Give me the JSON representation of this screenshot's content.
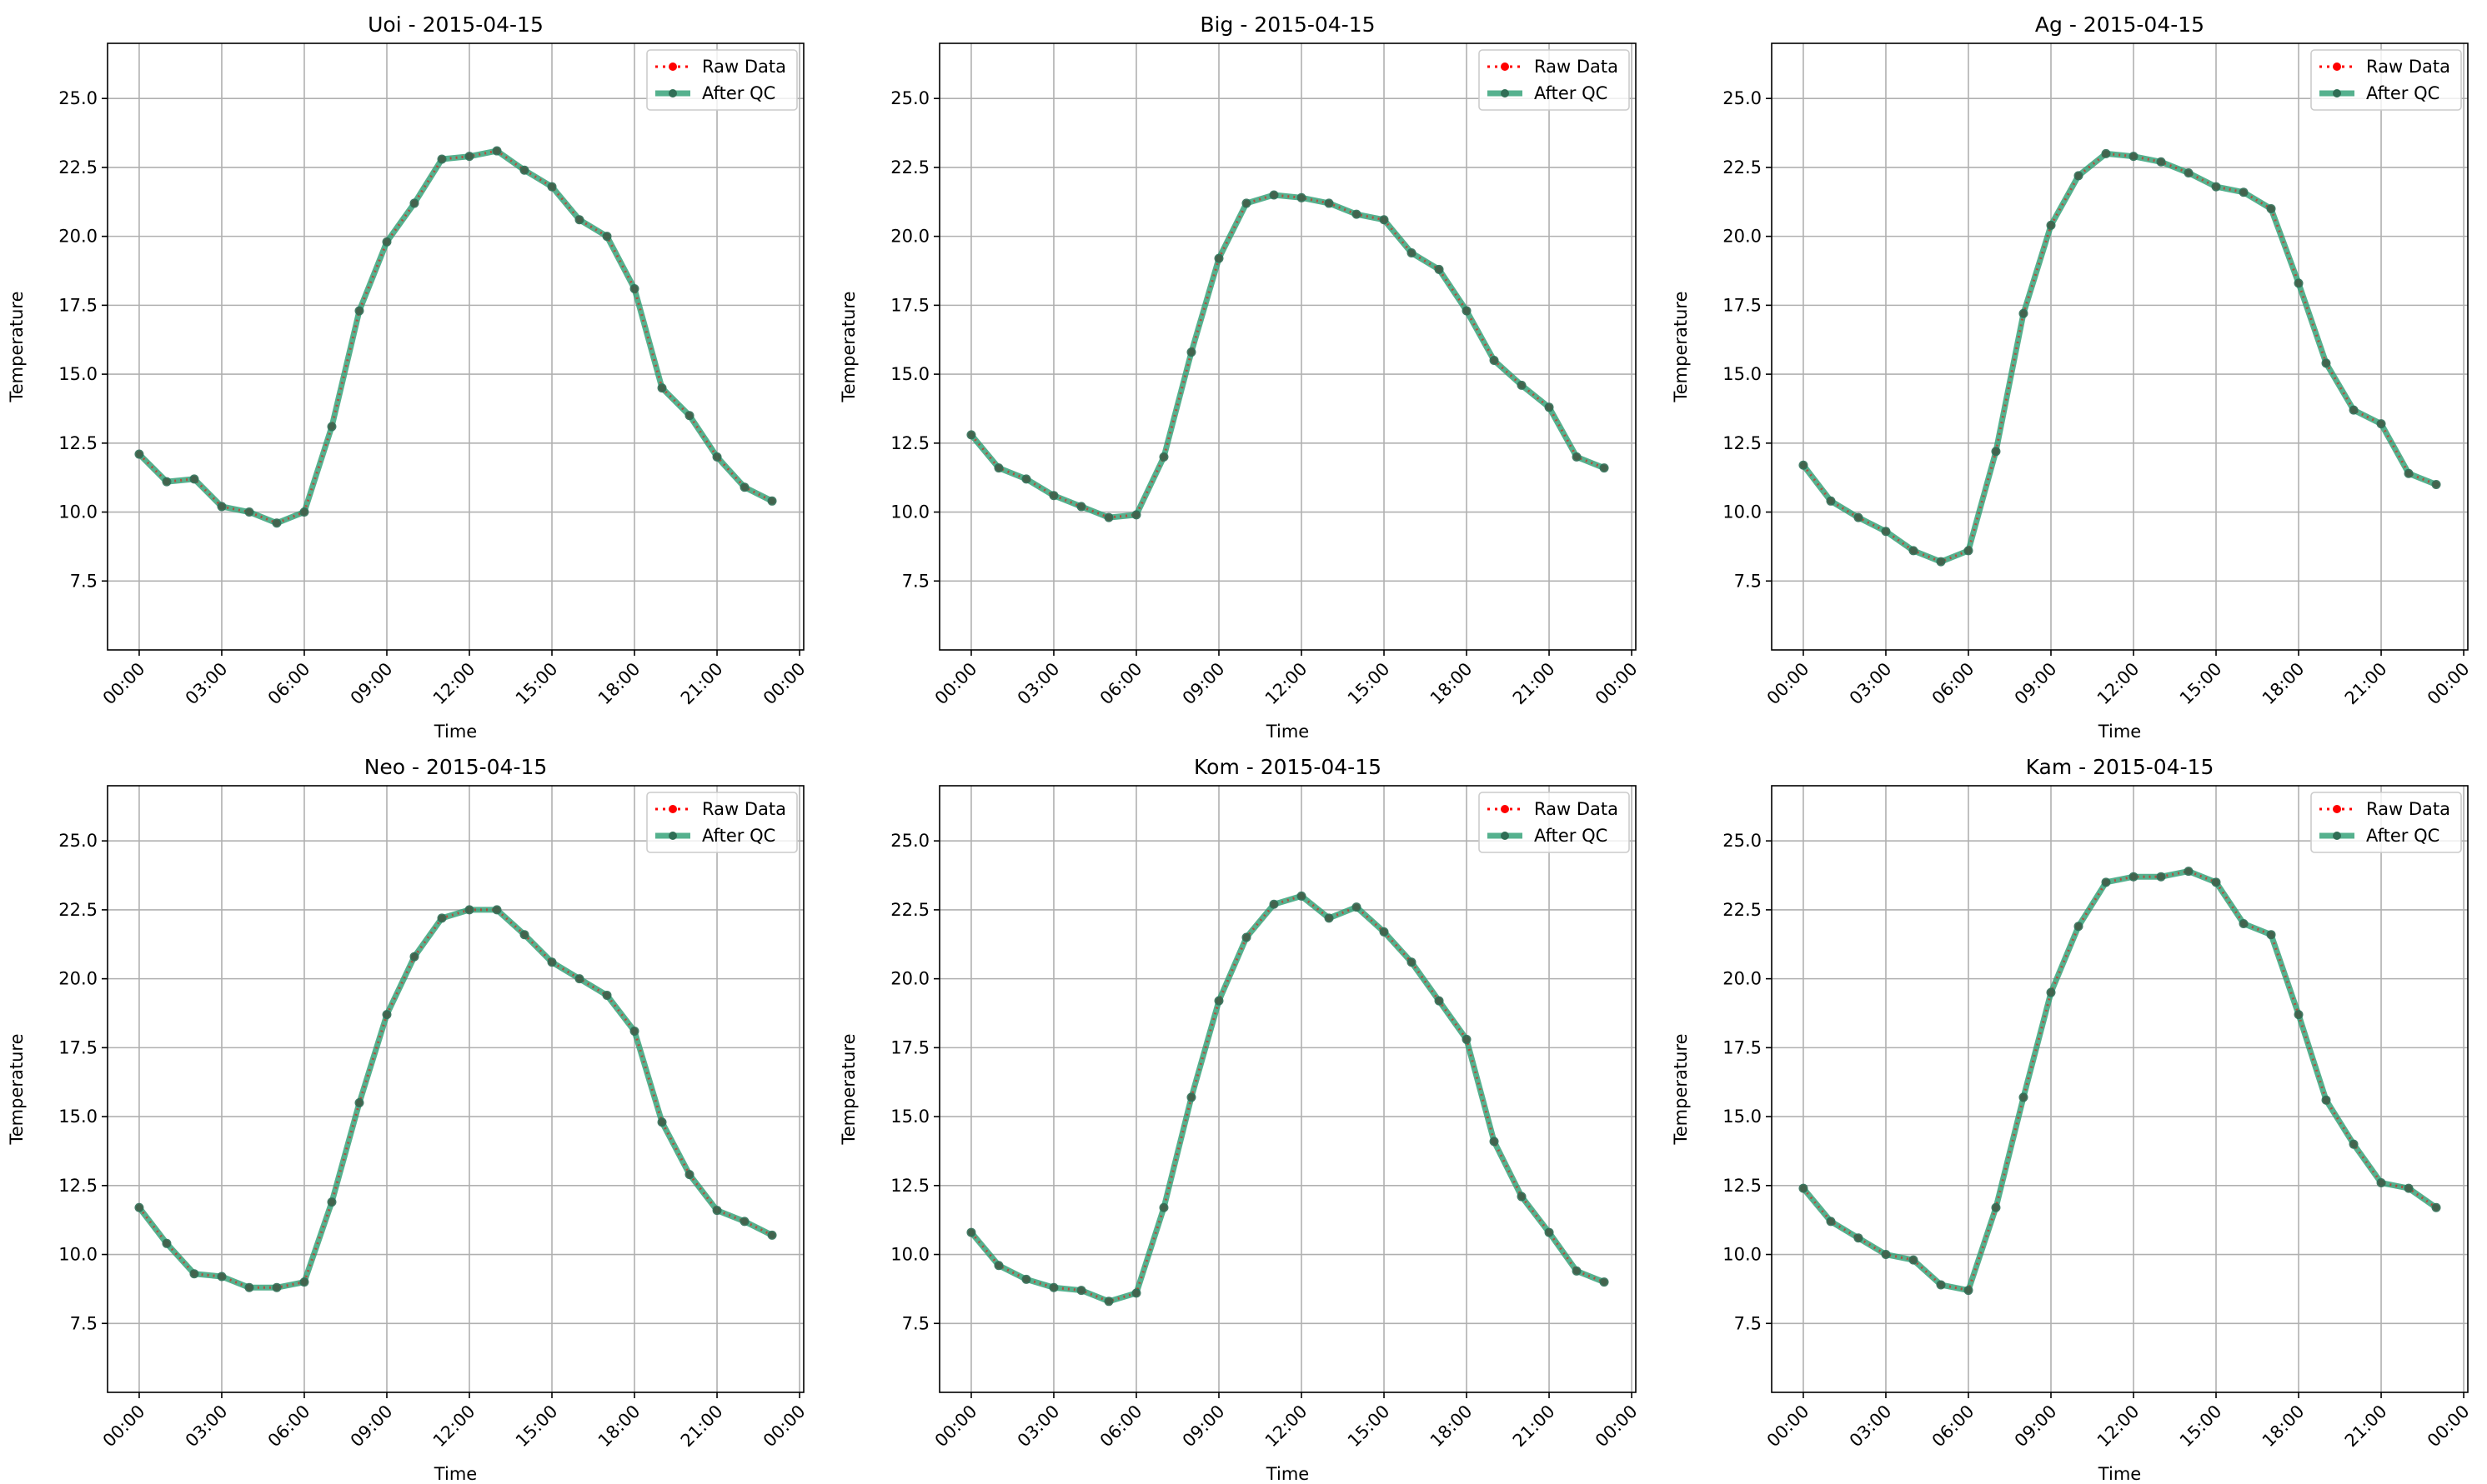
{
  "chart_data": [
    {
      "type": "line",
      "title": "Uoi - 2015-04-15",
      "xlabel": "Time",
      "ylabel": "Temperature",
      "ylim": [
        5.0,
        27.0
      ],
      "x_ticks": [
        "00:00",
        "03:00",
        "06:00",
        "09:00",
        "12:00",
        "15:00",
        "18:00",
        "21:00",
        "00:00"
      ],
      "y_ticks": [
        "7.5",
        "10.0",
        "12.5",
        "15.0",
        "17.5",
        "20.0",
        "22.5",
        "25.0"
      ],
      "grid": true,
      "legend": "upper right",
      "x": [
        "00:00",
        "01:00",
        "02:00",
        "03:00",
        "04:00",
        "05:00",
        "06:00",
        "07:00",
        "08:00",
        "09:00",
        "10:00",
        "11:00",
        "12:00",
        "13:00",
        "14:00",
        "15:00",
        "16:00",
        "17:00",
        "18:00",
        "19:00",
        "20:00",
        "21:00",
        "22:00",
        "23:00"
      ],
      "series": [
        {
          "name": "Raw Data",
          "color": "#ff0000",
          "values": [
            12.1,
            11.1,
            11.2,
            10.2,
            10.0,
            9.6,
            10.0,
            13.1,
            17.3,
            19.8,
            21.2,
            22.8,
            22.9,
            23.1,
            22.4,
            21.8,
            20.6,
            20.0,
            18.1,
            14.5,
            13.5,
            12.0,
            10.9,
            10.4
          ]
        },
        {
          "name": "After QC",
          "color": "#2a9d72",
          "values": [
            12.1,
            11.1,
            11.2,
            10.2,
            10.0,
            9.6,
            10.0,
            13.1,
            17.3,
            19.8,
            21.2,
            22.8,
            22.9,
            23.1,
            22.4,
            21.8,
            20.6,
            20.0,
            18.1,
            14.5,
            13.5,
            12.0,
            10.9,
            10.4
          ]
        }
      ]
    },
    {
      "type": "line",
      "title": "Big - 2015-04-15",
      "xlabel": "Time",
      "ylabel": "Temperature",
      "ylim": [
        5.0,
        27.0
      ],
      "x_ticks": [
        "00:00",
        "03:00",
        "06:00",
        "09:00",
        "12:00",
        "15:00",
        "18:00",
        "21:00",
        "00:00"
      ],
      "y_ticks": [
        "7.5",
        "10.0",
        "12.5",
        "15.0",
        "17.5",
        "20.0",
        "22.5",
        "25.0"
      ],
      "grid": true,
      "legend": "upper right",
      "x": [
        "00:00",
        "01:00",
        "02:00",
        "03:00",
        "04:00",
        "05:00",
        "06:00",
        "07:00",
        "08:00",
        "09:00",
        "10:00",
        "11:00",
        "12:00",
        "13:00",
        "14:00",
        "15:00",
        "16:00",
        "17:00",
        "18:00",
        "19:00",
        "20:00",
        "21:00",
        "22:00",
        "23:00"
      ],
      "series": [
        {
          "name": "Raw Data",
          "color": "#ff0000",
          "values": [
            12.8,
            11.6,
            11.2,
            10.6,
            10.2,
            9.8,
            9.9,
            12.0,
            15.8,
            19.2,
            21.2,
            21.5,
            21.4,
            21.2,
            20.8,
            20.6,
            19.4,
            18.8,
            17.3,
            15.5,
            14.6,
            13.8,
            12.0,
            11.6
          ]
        },
        {
          "name": "After QC",
          "color": "#2a9d72",
          "values": [
            12.8,
            11.6,
            11.2,
            10.6,
            10.2,
            9.8,
            9.9,
            12.0,
            15.8,
            19.2,
            21.2,
            21.5,
            21.4,
            21.2,
            20.8,
            20.6,
            19.4,
            18.8,
            17.3,
            15.5,
            14.6,
            13.8,
            12.0,
            11.6
          ]
        }
      ]
    },
    {
      "type": "line",
      "title": "Ag - 2015-04-15",
      "xlabel": "Time",
      "ylabel": "Temperature",
      "ylim": [
        5.0,
        27.0
      ],
      "x_ticks": [
        "00:00",
        "03:00",
        "06:00",
        "09:00",
        "12:00",
        "15:00",
        "18:00",
        "21:00",
        "00:00"
      ],
      "y_ticks": [
        "7.5",
        "10.0",
        "12.5",
        "15.0",
        "17.5",
        "20.0",
        "22.5",
        "25.0"
      ],
      "grid": true,
      "legend": "upper right",
      "x": [
        "00:00",
        "01:00",
        "02:00",
        "03:00",
        "04:00",
        "05:00",
        "06:00",
        "07:00",
        "08:00",
        "09:00",
        "10:00",
        "11:00",
        "12:00",
        "13:00",
        "14:00",
        "15:00",
        "16:00",
        "17:00",
        "18:00",
        "19:00",
        "20:00",
        "21:00",
        "22:00",
        "23:00"
      ],
      "series": [
        {
          "name": "Raw Data",
          "color": "#ff0000",
          "values": [
            11.7,
            10.4,
            9.8,
            9.3,
            8.6,
            8.2,
            8.6,
            12.2,
            17.2,
            20.4,
            22.2,
            23.0,
            22.9,
            22.7,
            22.3,
            21.8,
            21.6,
            21.0,
            18.3,
            15.4,
            13.7,
            13.2,
            11.4,
            11.0
          ]
        },
        {
          "name": "After QC",
          "color": "#2a9d72",
          "values": [
            11.7,
            10.4,
            9.8,
            9.3,
            8.6,
            8.2,
            8.6,
            12.2,
            17.2,
            20.4,
            22.2,
            23.0,
            22.9,
            22.7,
            22.3,
            21.8,
            21.6,
            21.0,
            18.3,
            15.4,
            13.7,
            13.2,
            11.4,
            11.0
          ]
        }
      ]
    },
    {
      "type": "line",
      "title": "Neo - 2015-04-15",
      "xlabel": "Time",
      "ylabel": "Temperature",
      "ylim": [
        5.0,
        27.0
      ],
      "x_ticks": [
        "00:00",
        "03:00",
        "06:00",
        "09:00",
        "12:00",
        "15:00",
        "18:00",
        "21:00",
        "00:00"
      ],
      "y_ticks": [
        "7.5",
        "10.0",
        "12.5",
        "15.0",
        "17.5",
        "20.0",
        "22.5",
        "25.0"
      ],
      "grid": true,
      "legend": "upper right",
      "x": [
        "00:00",
        "01:00",
        "02:00",
        "03:00",
        "04:00",
        "05:00",
        "06:00",
        "07:00",
        "08:00",
        "09:00",
        "10:00",
        "11:00",
        "12:00",
        "13:00",
        "14:00",
        "15:00",
        "16:00",
        "17:00",
        "18:00",
        "19:00",
        "20:00",
        "21:00",
        "22:00",
        "23:00"
      ],
      "series": [
        {
          "name": "Raw Data",
          "color": "#ff0000",
          "values": [
            11.7,
            10.4,
            9.3,
            9.2,
            8.8,
            8.8,
            9.0,
            11.9,
            15.5,
            18.7,
            20.8,
            22.2,
            22.5,
            22.5,
            21.6,
            20.6,
            20.0,
            19.4,
            18.1,
            14.8,
            12.9,
            11.6,
            11.2,
            10.7
          ]
        },
        {
          "name": "After QC",
          "color": "#2a9d72",
          "values": [
            11.7,
            10.4,
            9.3,
            9.2,
            8.8,
            8.8,
            9.0,
            11.9,
            15.5,
            18.7,
            20.8,
            22.2,
            22.5,
            22.5,
            21.6,
            20.6,
            20.0,
            19.4,
            18.1,
            14.8,
            12.9,
            11.6,
            11.2,
            10.7
          ]
        }
      ]
    },
    {
      "type": "line",
      "title": "Kom - 2015-04-15",
      "xlabel": "Time",
      "ylabel": "Temperature",
      "ylim": [
        5.0,
        27.0
      ],
      "x_ticks": [
        "00:00",
        "03:00",
        "06:00",
        "09:00",
        "12:00",
        "15:00",
        "18:00",
        "21:00",
        "00:00"
      ],
      "y_ticks": [
        "7.5",
        "10.0",
        "12.5",
        "15.0",
        "17.5",
        "20.0",
        "22.5",
        "25.0"
      ],
      "grid": true,
      "legend": "upper right",
      "x": [
        "00:00",
        "01:00",
        "02:00",
        "03:00",
        "04:00",
        "05:00",
        "06:00",
        "07:00",
        "08:00",
        "09:00",
        "10:00",
        "11:00",
        "12:00",
        "13:00",
        "14:00",
        "15:00",
        "16:00",
        "17:00",
        "18:00",
        "19:00",
        "20:00",
        "21:00",
        "22:00",
        "23:00"
      ],
      "series": [
        {
          "name": "Raw Data",
          "color": "#ff0000",
          "values": [
            10.8,
            9.6,
            9.1,
            8.8,
            8.7,
            8.3,
            8.6,
            11.7,
            15.7,
            19.2,
            21.5,
            22.7,
            23.0,
            22.2,
            22.6,
            21.7,
            20.6,
            19.2,
            17.8,
            14.1,
            12.1,
            10.8,
            9.4,
            9.0
          ]
        },
        {
          "name": "After QC",
          "color": "#2a9d72",
          "values": [
            10.8,
            9.6,
            9.1,
            8.8,
            8.7,
            8.3,
            8.6,
            11.7,
            15.7,
            19.2,
            21.5,
            22.7,
            23.0,
            22.2,
            22.6,
            21.7,
            20.6,
            19.2,
            17.8,
            14.1,
            12.1,
            10.8,
            9.4,
            9.0
          ]
        }
      ]
    },
    {
      "type": "line",
      "title": "Kam - 2015-04-15",
      "xlabel": "Time",
      "ylabel": "Temperature",
      "ylim": [
        5.0,
        27.0
      ],
      "x_ticks": [
        "00:00",
        "03:00",
        "06:00",
        "09:00",
        "12:00",
        "15:00",
        "18:00",
        "21:00",
        "00:00"
      ],
      "y_ticks": [
        "7.5",
        "10.0",
        "12.5",
        "15.0",
        "17.5",
        "20.0",
        "22.5",
        "25.0"
      ],
      "grid": true,
      "legend": "upper right",
      "x": [
        "00:00",
        "01:00",
        "02:00",
        "03:00",
        "04:00",
        "05:00",
        "06:00",
        "07:00",
        "08:00",
        "09:00",
        "10:00",
        "11:00",
        "12:00",
        "13:00",
        "14:00",
        "15:00",
        "16:00",
        "17:00",
        "18:00",
        "19:00",
        "20:00",
        "21:00",
        "22:00",
        "23:00"
      ],
      "series": [
        {
          "name": "Raw Data",
          "color": "#ff0000",
          "values": [
            12.4,
            11.2,
            10.6,
            10.0,
            9.8,
            8.9,
            8.7,
            11.7,
            15.7,
            19.5,
            21.9,
            23.5,
            23.7,
            23.7,
            23.9,
            23.5,
            22.0,
            21.6,
            18.7,
            15.6,
            14.0,
            12.6,
            12.4,
            11.7
          ]
        },
        {
          "name": "After QC",
          "color": "#2a9d72",
          "values": [
            12.4,
            11.2,
            10.6,
            10.0,
            9.8,
            8.9,
            8.7,
            11.7,
            15.7,
            19.5,
            21.9,
            23.5,
            23.7,
            23.7,
            23.9,
            23.5,
            22.0,
            21.6,
            18.7,
            15.6,
            14.0,
            12.6,
            12.4,
            11.7
          ]
        }
      ]
    }
  ]
}
